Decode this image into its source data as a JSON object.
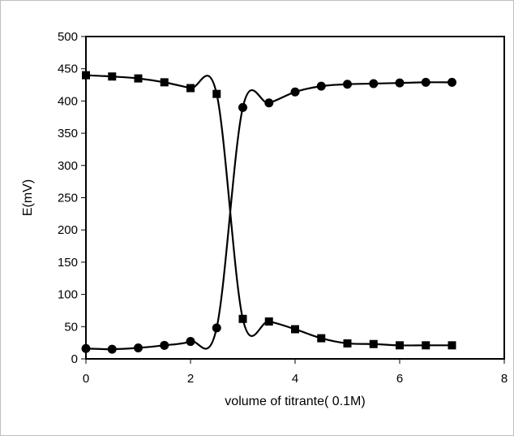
{
  "chart_data": {
    "type": "scatter",
    "title": "",
    "xlabel": "volume of titrante( 0.1M)",
    "ylabel": "E(mV)",
    "xlim": [
      0,
      8
    ],
    "ylim": [
      0,
      500
    ],
    "x_ticks": [
      0,
      2,
      4,
      6,
      8
    ],
    "y_ticks": [
      0,
      50,
      100,
      150,
      200,
      250,
      300,
      350,
      400,
      450,
      500
    ],
    "grid": false,
    "legend": "none",
    "line_style": "smoothed line with markers",
    "color": "#000000",
    "series": [
      {
        "marker": "square",
        "x": [
          0,
          0.5,
          1,
          1.5,
          2,
          2.5,
          3,
          3.5,
          4,
          4.5,
          5,
          5.5,
          6,
          6.5,
          7
        ],
        "y": [
          440,
          438,
          435,
          429,
          420,
          411,
          62,
          58,
          46,
          32,
          24,
          23,
          21,
          21,
          21
        ]
      },
      {
        "marker": "circle",
        "x": [
          0,
          0.5,
          1,
          1.5,
          2,
          2.5,
          3,
          3.5,
          4,
          4.5,
          5,
          5.5,
          6,
          6.5,
          7
        ],
        "y": [
          16,
          15,
          17,
          21,
          27,
          48,
          390,
          397,
          414,
          423,
          426,
          427,
          428,
          429,
          429
        ]
      }
    ]
  }
}
